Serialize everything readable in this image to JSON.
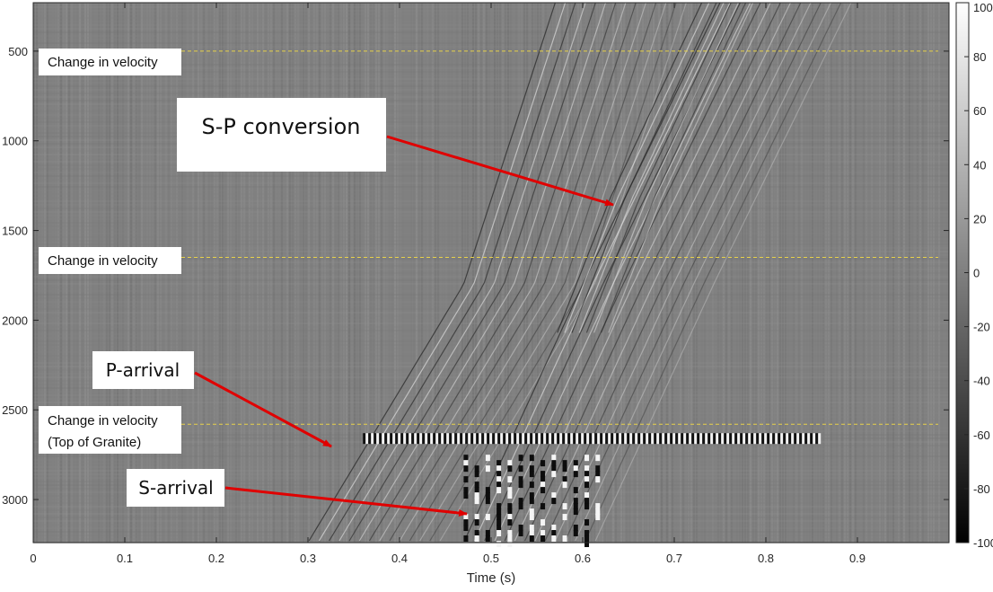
{
  "chart_data": {
    "type": "heatmap",
    "title": "",
    "xlabel": "Time (s)",
    "ylabel": "",
    "xlim": [
      0,
      1.0
    ],
    "ylim": [
      3240,
      230
    ],
    "y_reversed": true,
    "x_ticks": [
      "0",
      "0.1",
      "0.2",
      "0.3",
      "0.4",
      "0.5",
      "0.6",
      "0.7",
      "0.8",
      "0.9"
    ],
    "x_tick_values": [
      0,
      0.1,
      0.2,
      0.3,
      0.4,
      0.5,
      0.6,
      0.7,
      0.8,
      0.9
    ],
    "y_ticks": [
      "500",
      "1000",
      "1500",
      "2000",
      "2500",
      "3000"
    ],
    "y_tick_values": [
      500,
      1000,
      1500,
      2000,
      2500,
      3000
    ],
    "colorbar": {
      "min": -100,
      "max": 100,
      "ticks": [
        "100",
        "80",
        "60",
        "40",
        "20",
        "0",
        "-20",
        "-40",
        "-60",
        "-80",
        "-100"
      ],
      "tick_values": [
        100,
        80,
        60,
        40,
        20,
        0,
        -20,
        -40,
        -60,
        -80,
        -100
      ],
      "colormap": "gray"
    },
    "velocity_changes": [
      {
        "depth": 500,
        "label": "Change in velocity"
      },
      {
        "depth": 1650,
        "label": "Change in velocity"
      },
      {
        "depth": 2580,
        "label": "Change in velocity",
        "label2": "(Top of Granite)"
      }
    ],
    "annotations": [
      {
        "text": "S-P conversion",
        "arrow_to": {
          "x": 0.633,
          "y": 1320
        }
      },
      {
        "text": "P-arrival",
        "arrow_to": {
          "x": 0.325,
          "y": 2700
        }
      },
      {
        "text": "S-arrival",
        "arrow_to": {
          "x": 0.475,
          "y": 3080
        }
      }
    ],
    "events": [
      {
        "name": "P-arrival",
        "moveout": [
          {
            "x": 0.3,
            "y": 3240
          },
          {
            "x": 0.47,
            "y": 1800
          },
          {
            "x": 0.57,
            "y": 230
          }
        ]
      },
      {
        "name": "S-arrival",
        "moveout": [
          {
            "x": 0.47,
            "y": 3240
          },
          {
            "x": 0.6,
            "y": 1800
          },
          {
            "x": 0.75,
            "y": 230
          }
        ]
      },
      {
        "name": "S-P conversion",
        "moveout": [
          {
            "x": 0.57,
            "y": 2100
          },
          {
            "x": 0.63,
            "y": 1320
          },
          {
            "x": 0.73,
            "y": 230
          }
        ]
      }
    ],
    "colors": {
      "velocity_line": "#e8d24a",
      "arrow": "#e00000",
      "background_noise": "#808080"
    }
  }
}
